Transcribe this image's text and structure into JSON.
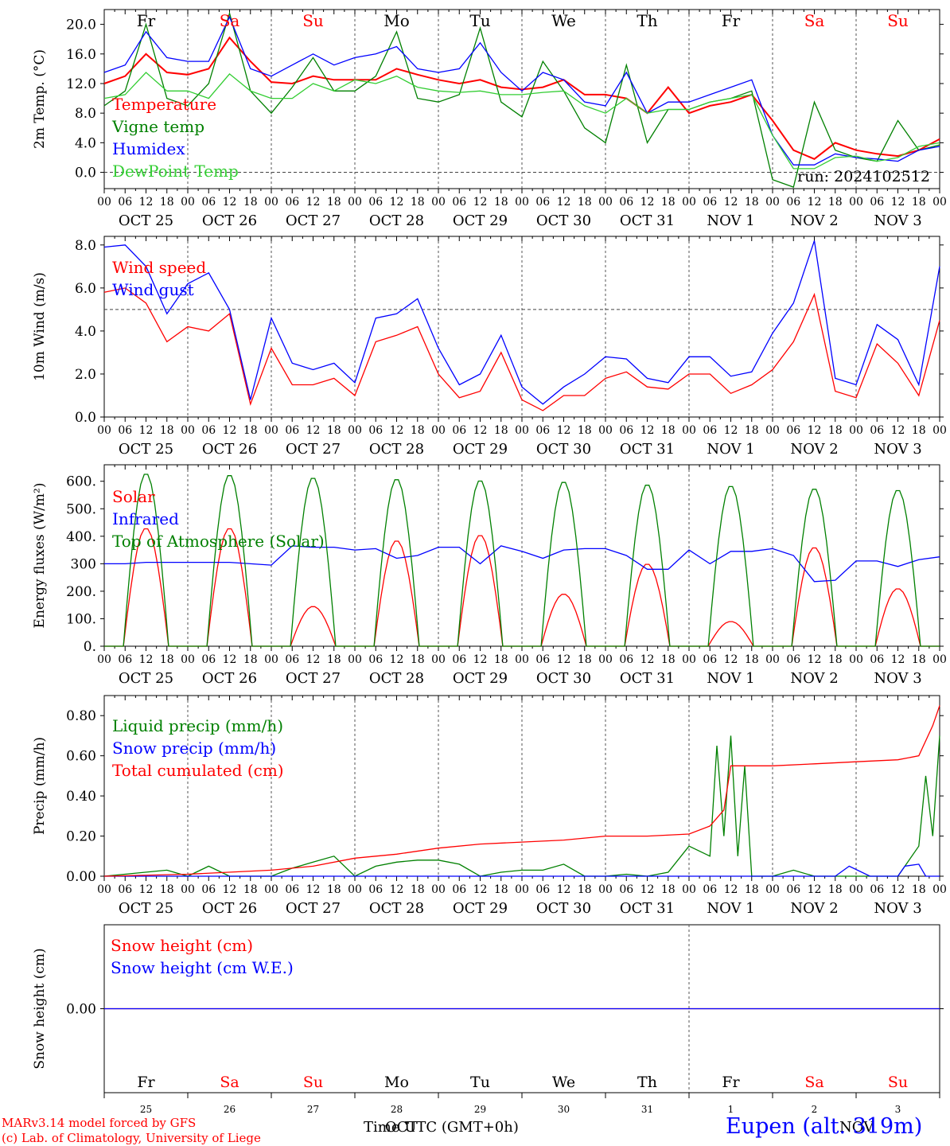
{
  "days": [
    "Fr",
    "Sa",
    "Su",
    "Mo",
    "Tu",
    "We",
    "Th",
    "Fr",
    "Sa",
    "Su"
  ],
  "day_colors": [
    "#000000",
    "#ff0000",
    "#ff0000",
    "#000000",
    "#000000",
    "#000000",
    "#000000",
    "#000000",
    "#ff0000",
    "#ff0000"
  ],
  "dates": [
    "OCT 25",
    "OCT 26",
    "OCT 27",
    "OCT 28",
    "OCT 29",
    "OCT 30",
    "OCT 31",
    "NOV  1",
    "NOV  2",
    "NOV  3"
  ],
  "date_numbers": [
    "25",
    "26",
    "27",
    "28",
    "29",
    "30",
    "31",
    "1",
    "2",
    "3"
  ],
  "hour_ticks": [
    "00",
    "06",
    "12",
    "18"
  ],
  "colors": {
    "red": "#ff0000",
    "green": "#008000",
    "blue": "#0000ff",
    "lightgreen": "#32cd32",
    "purple": "#800080"
  },
  "footer": {
    "credit1": "MARv3.14 model forced by GFS",
    "credit2": "(c) Lab. of Climatology, University of Liege",
    "xlabel": "Time UTC (GMT+0h)",
    "month_overlay": "OCT",
    "month_overlay2": "NOV",
    "station": "Eupen (alt. 319m)"
  },
  "chart_data": [
    {
      "type": "line",
      "ylabel": "2m Temp. (°C)",
      "ylim": [
        -2.2,
        22
      ],
      "yticks": [
        "20.0",
        "16.0",
        "12.0",
        "8.0",
        "4.0",
        "0.0"
      ],
      "ytick_values": [
        20,
        16,
        12,
        8,
        4,
        0
      ],
      "reference_line": 0,
      "run_label": "run: 2024102512",
      "x_unit": "hours since OCT 25 00 UTC",
      "series": [
        {
          "name": "Temperature",
          "color": "#ff0000",
          "x": [
            0,
            6,
            12,
            18,
            24,
            30,
            36,
            42,
            48,
            54,
            60,
            66,
            72,
            78,
            84,
            90,
            96,
            102,
            108,
            114,
            120,
            126,
            132,
            138,
            144,
            150,
            156,
            162,
            168,
            174,
            180,
            186,
            192,
            198,
            204,
            210,
            216,
            222,
            228,
            234,
            240
          ],
          "y": [
            12.0,
            13,
            16,
            13.5,
            13.2,
            14,
            18.2,
            15,
            12.2,
            12,
            13,
            12.5,
            12.5,
            12.5,
            14,
            13.2,
            12.5,
            12,
            12.5,
            11.5,
            11.2,
            11.5,
            12.5,
            10.5,
            10.5,
            10,
            8,
            11.5,
            8,
            9,
            9.5,
            10.5,
            7,
            3,
            1.8,
            4,
            3,
            2.5,
            2.2,
            3,
            4.5
          ]
        },
        {
          "name": "Vigne temp",
          "color": "#008000",
          "x": [
            0,
            6,
            12,
            18,
            24,
            30,
            36,
            42,
            48,
            54,
            60,
            66,
            72,
            78,
            84,
            90,
            96,
            102,
            108,
            114,
            120,
            126,
            132,
            138,
            144,
            150,
            156,
            162,
            168,
            174,
            180,
            186,
            192,
            198,
            204,
            210,
            216,
            222,
            228,
            234,
            240
          ],
          "y": [
            9,
            11,
            20,
            10,
            9,
            12,
            21.5,
            11,
            8,
            11.5,
            15.5,
            11,
            11,
            13,
            19,
            10,
            9.5,
            10.5,
            19.5,
            9.5,
            7.5,
            15,
            11,
            6,
            4,
            14.5,
            4,
            8.5,
            8.5,
            9.5,
            10,
            11,
            -1,
            -2,
            9.5,
            3,
            2,
            1.5,
            7,
            3,
            3.7
          ]
        },
        {
          "name": "Humidex",
          "color": "#0000ff",
          "x": [
            0,
            6,
            12,
            18,
            24,
            30,
            36,
            42,
            48,
            54,
            60,
            66,
            72,
            78,
            84,
            90,
            96,
            102,
            108,
            114,
            120,
            126,
            132,
            138,
            144,
            150,
            156,
            162,
            168,
            174,
            180,
            186,
            192,
            198,
            204,
            210,
            216,
            222,
            228,
            234,
            240
          ],
          "y": [
            13.5,
            14.5,
            19,
            15.5,
            15,
            15,
            21,
            14,
            13,
            14.5,
            16,
            14.5,
            15.5,
            16,
            17,
            14,
            13.5,
            14,
            17.5,
            13.5,
            11,
            13.5,
            12.5,
            9.5,
            9,
            13.5,
            8,
            9.5,
            9.5,
            10.5,
            11.5,
            12.5,
            5,
            1,
            1,
            2.5,
            2,
            1.8,
            1.5,
            3,
            3.5
          ]
        },
        {
          "name": "DewPoint Temp",
          "color": "#32cd32",
          "x": [
            0,
            6,
            12,
            18,
            24,
            30,
            36,
            42,
            48,
            54,
            60,
            66,
            72,
            78,
            84,
            90,
            96,
            102,
            108,
            114,
            120,
            126,
            132,
            138,
            144,
            150,
            156,
            162,
            168,
            174,
            180,
            186,
            192,
            198,
            204,
            210,
            216,
            222,
            228,
            234,
            240
          ],
          "y": [
            10,
            10.5,
            13.5,
            11,
            11,
            10,
            13.3,
            11,
            10,
            10,
            12,
            11,
            12.5,
            12,
            13,
            11.5,
            11,
            10.8,
            11,
            10.5,
            10.5,
            10.8,
            11,
            9,
            8,
            10,
            8,
            8.5,
            8.5,
            9.5,
            10,
            10.5,
            5,
            0.5,
            0.5,
            2,
            2.2,
            1.5,
            2,
            3.5,
            4
          ]
        }
      ]
    },
    {
      "type": "line",
      "ylabel": "10m Wind (m/s)",
      "ylim": [
        0,
        8.4
      ],
      "yticks": [
        "8.0",
        "6.0",
        "4.0",
        "2.0",
        "0.0"
      ],
      "ytick_values": [
        8,
        6,
        4,
        2,
        0
      ],
      "reference_line": 5,
      "x_unit": "hours since OCT 25 00 UTC",
      "series": [
        {
          "name": "Wind speed",
          "color": "#ff0000",
          "x": [
            0,
            6,
            12,
            18,
            24,
            30,
            36,
            42,
            48,
            54,
            60,
            66,
            72,
            78,
            84,
            90,
            96,
            102,
            108,
            114,
            120,
            126,
            132,
            138,
            144,
            150,
            156,
            162,
            168,
            174,
            180,
            186,
            192,
            198,
            204,
            210,
            216,
            222,
            228,
            234,
            240
          ],
          "y": [
            5.8,
            6,
            5.3,
            3.5,
            4.2,
            4,
            4.8,
            0.6,
            3.2,
            1.5,
            1.5,
            1.8,
            1,
            3.5,
            3.8,
            4.2,
            2,
            0.9,
            1.2,
            3,
            0.8,
            0.3,
            1,
            1,
            1.8,
            2.1,
            1.4,
            1.3,
            2,
            2,
            1.1,
            1.5,
            2.2,
            3.5,
            5.7,
            1.2,
            0.9,
            3.4,
            2.5,
            1,
            4.5
          ]
        },
        {
          "name": "Wind gust",
          "color": "#0000ff",
          "x": [
            0,
            6,
            12,
            18,
            24,
            30,
            36,
            42,
            48,
            54,
            60,
            66,
            72,
            78,
            84,
            90,
            96,
            102,
            108,
            114,
            120,
            126,
            132,
            138,
            144,
            150,
            156,
            162,
            168,
            174,
            180,
            186,
            192,
            198,
            204,
            210,
            216,
            222,
            228,
            234,
            240
          ],
          "y": [
            7.9,
            8,
            7,
            4.8,
            6.2,
            6.7,
            5,
            0.8,
            4.6,
            2.5,
            2.2,
            2.5,
            1.6,
            4.6,
            4.8,
            5.5,
            3.2,
            1.5,
            2,
            3.8,
            1.4,
            0.6,
            1.4,
            2,
            2.8,
            2.7,
            1.8,
            1.6,
            2.8,
            2.8,
            1.9,
            2.1,
            3.9,
            5.3,
            8.2,
            1.8,
            1.5,
            4.3,
            3.6,
            1.5,
            7
          ]
        }
      ]
    },
    {
      "type": "line",
      "ylabel": "Energy fluxes (W/m²)",
      "ylim": [
        0,
        660
      ],
      "yticks": [
        "600.",
        "500.",
        "400.",
        "300",
        "200.",
        "100.",
        "0."
      ],
      "ytick_values": [
        600,
        500,
        400,
        300,
        200,
        100,
        0
      ],
      "x_unit": "hours since OCT 25 00 UTC",
      "series": [
        {
          "name": "Solar",
          "color": "#ff0000",
          "peaks_x": [
            12,
            36,
            60,
            84,
            108,
            132,
            156,
            180,
            204,
            228
          ],
          "peaks_y": [
            430,
            430,
            145,
            385,
            405,
            190,
            300,
            90,
            360,
            210
          ]
        },
        {
          "name": "Infrared",
          "color": "#0000ff",
          "x": [
            0,
            6,
            12,
            18,
            24,
            30,
            36,
            42,
            48,
            54,
            60,
            66,
            72,
            78,
            84,
            90,
            96,
            102,
            108,
            114,
            120,
            126,
            132,
            138,
            144,
            150,
            156,
            162,
            168,
            174,
            180,
            186,
            192,
            198,
            204,
            210,
            216,
            222,
            228,
            234,
            240
          ],
          "y": [
            300,
            300,
            305,
            305,
            305,
            305,
            305,
            300,
            295,
            365,
            360,
            360,
            350,
            355,
            320,
            330,
            360,
            360,
            300,
            365,
            345,
            320,
            350,
            355,
            355,
            330,
            280,
            280,
            350,
            300,
            345,
            345,
            355,
            330,
            235,
            240,
            310,
            310,
            290,
            315,
            325
          ]
        },
        {
          "name": "Top of Atmosphere (Solar)",
          "color": "#008000",
          "peaks_x": [
            12,
            36,
            60,
            84,
            108,
            132,
            156,
            180,
            204,
            228
          ],
          "peaks_y": [
            630,
            625,
            615,
            610,
            605,
            600,
            590,
            585,
            575,
            570
          ]
        }
      ]
    },
    {
      "type": "line",
      "ylabel": "Precip (mm/h)",
      "ylim": [
        0,
        0.9
      ],
      "yticks": [
        "0.80",
        "0.60",
        "0.40",
        "0.20",
        "0.00"
      ],
      "ytick_values": [
        0.8,
        0.6,
        0.4,
        0.2,
        0
      ],
      "x_unit": "hours since OCT 25 00 UTC",
      "series": [
        {
          "name": "Liquid precip (mm/h)",
          "color": "#008000",
          "x": [
            0,
            18,
            24,
            30,
            36,
            42,
            48,
            54,
            60,
            66,
            72,
            78,
            84,
            90,
            96,
            102,
            108,
            114,
            120,
            126,
            132,
            138,
            144,
            150,
            156,
            162,
            168,
            174,
            176,
            178,
            180,
            182,
            184,
            186,
            192,
            198,
            204,
            210,
            216,
            222,
            228,
            234,
            236,
            238,
            240
          ],
          "y": [
            0,
            0.03,
            0,
            0.05,
            0,
            0,
            0,
            0.04,
            0.07,
            0.1,
            0,
            0.05,
            0.07,
            0.08,
            0.08,
            0.06,
            0,
            0.02,
            0.03,
            0.03,
            0.06,
            0,
            0,
            0.01,
            0,
            0.02,
            0.15,
            0.1,
            0.65,
            0.2,
            0.7,
            0.1,
            0.55,
            0,
            0,
            0.03,
            0,
            0,
            0,
            0,
            0,
            0.15,
            0.5,
            0.2,
            0.7
          ]
        },
        {
          "name": "Snow precip (mm/h)",
          "color": "#0000ff",
          "x": [
            0,
            210,
            214,
            220,
            228,
            230,
            234,
            236,
            240
          ],
          "y": [
            0,
            0,
            0.05,
            0,
            0,
            0.05,
            0.06,
            0,
            0
          ]
        },
        {
          "name": "Total cumulated (cm)",
          "color": "#ff0000",
          "x": [
            0,
            24,
            48,
            60,
            72,
            84,
            96,
            108,
            120,
            132,
            144,
            156,
            168,
            174,
            178,
            180,
            186,
            192,
            204,
            216,
            228,
            234,
            238,
            240
          ],
          "y": [
            0,
            0.01,
            0.03,
            0.05,
            0.09,
            0.11,
            0.14,
            0.16,
            0.17,
            0.18,
            0.2,
            0.2,
            0.21,
            0.25,
            0.33,
            0.55,
            0.55,
            0.55,
            0.56,
            0.57,
            0.58,
            0.6,
            0.75,
            0.85
          ]
        }
      ]
    },
    {
      "type": "line",
      "ylabel": "Snow height (cm)",
      "ylim": [
        -1,
        1
      ],
      "yticks": [
        "0.00"
      ],
      "ytick_values": [
        0
      ],
      "x_unit": "hours since OCT 25 00 UTC",
      "series": [
        {
          "name": "Snow height (cm)",
          "color": "#ff0000",
          "x": [
            0,
            240
          ],
          "y": [
            0,
            0
          ]
        },
        {
          "name": "Snow height (cm W.E.)",
          "color": "#0000ff",
          "x": [
            0,
            240
          ],
          "y": [
            0,
            0
          ]
        }
      ]
    }
  ]
}
